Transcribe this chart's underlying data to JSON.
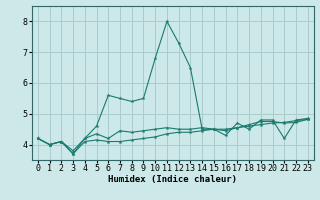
{
  "xlabel": "Humidex (Indice chaleur)",
  "x": [
    0,
    1,
    2,
    3,
    4,
    5,
    6,
    7,
    8,
    9,
    10,
    11,
    12,
    13,
    14,
    15,
    16,
    17,
    18,
    19,
    20,
    21,
    22,
    23
  ],
  "line1": [
    4.2,
    4.0,
    4.1,
    3.7,
    4.1,
    4.15,
    4.1,
    4.1,
    4.15,
    4.2,
    4.25,
    4.35,
    4.4,
    4.4,
    4.45,
    4.5,
    4.5,
    4.55,
    4.6,
    4.65,
    4.7,
    4.72,
    4.78,
    4.82
  ],
  "line2": [
    4.2,
    4.0,
    4.1,
    3.8,
    4.2,
    4.35,
    4.2,
    4.45,
    4.4,
    4.45,
    4.5,
    4.55,
    4.5,
    4.5,
    4.55,
    4.5,
    4.45,
    4.55,
    4.65,
    4.75,
    4.75,
    4.7,
    4.72,
    4.82
  ],
  "line3": [
    4.2,
    4.0,
    4.1,
    3.7,
    4.2,
    4.6,
    5.6,
    5.5,
    5.4,
    5.5,
    6.8,
    8.0,
    7.3,
    6.5,
    4.5,
    4.5,
    4.3,
    4.7,
    4.5,
    4.8,
    4.8,
    4.2,
    4.8,
    4.85
  ],
  "line_color": "#1a7a6e",
  "bg_color": "#cce8e8",
  "grid_color": "#aacccc",
  "ylim": [
    3.5,
    8.5
  ],
  "xlim": [
    -0.5,
    23.5
  ],
  "yticks": [
    4,
    5,
    6,
    7,
    8
  ],
  "xticks": [
    0,
    1,
    2,
    3,
    4,
    5,
    6,
    7,
    8,
    9,
    10,
    11,
    12,
    13,
    14,
    15,
    16,
    17,
    18,
    19,
    20,
    21,
    22,
    23
  ],
  "label_fontsize": 6.5,
  "tick_fontsize": 6.0
}
